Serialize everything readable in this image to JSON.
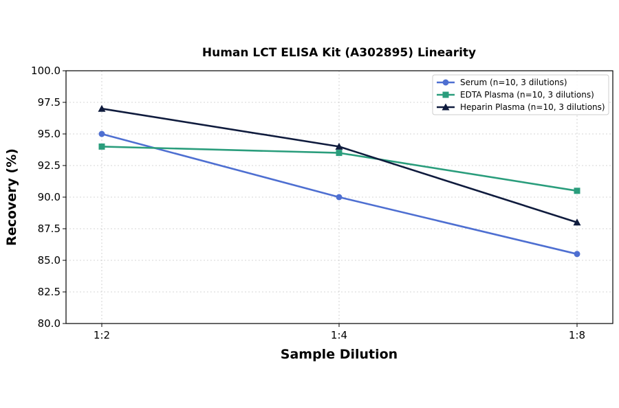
{
  "chart_data": {
    "type": "line",
    "title": "Human LCT ELISA Kit (A302895) Linearity",
    "xlabel": "Sample Dilution",
    "ylabel": "Recovery (%)",
    "categories": [
      "1:2",
      "1:4",
      "1:8"
    ],
    "ylim": [
      80.0,
      100.0
    ],
    "yticks": [
      "80.0",
      "82.5",
      "85.0",
      "87.5",
      "90.0",
      "92.5",
      "95.0",
      "97.5",
      "100.0"
    ],
    "grid": true,
    "legend_position": "top-right",
    "series": [
      {
        "name": "Serum (n=10, 3 dilutions)",
        "values": [
          95.0,
          90.0,
          85.5
        ],
        "color": "#4e6fd1",
        "marker": "circle"
      },
      {
        "name": "EDTA Plasma (n=10, 3 dilutions)",
        "values": [
          94.0,
          93.5,
          90.5
        ],
        "color": "#2a9d7c",
        "marker": "square"
      },
      {
        "name": "Heparin Plasma (n=10, 3 dilutions)",
        "values": [
          97.0,
          94.0,
          88.0
        ],
        "color": "#0f1b3d",
        "marker": "triangle"
      }
    ]
  }
}
